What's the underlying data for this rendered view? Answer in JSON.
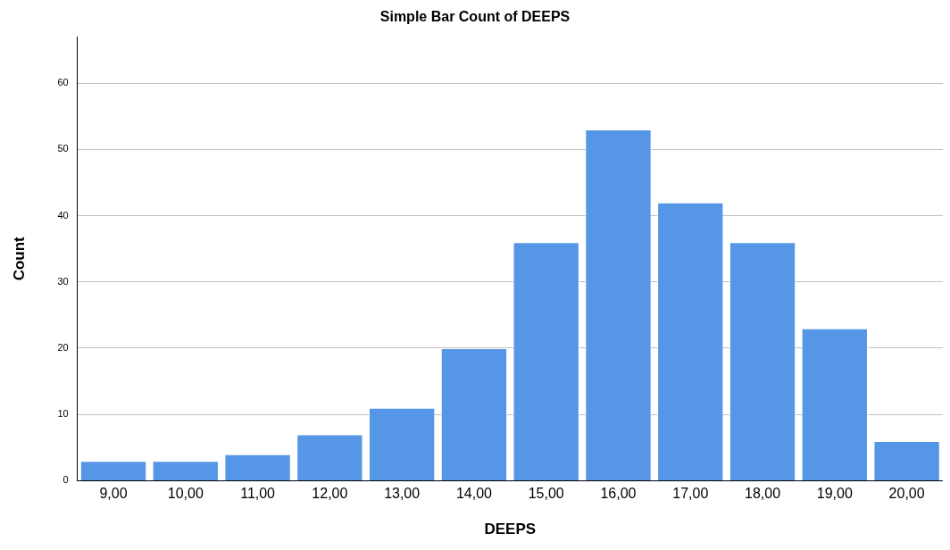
{
  "chart_data": {
    "type": "bar",
    "title": "Simple Bar Count of DEEPS",
    "xlabel": "DEEPS",
    "ylabel": "Count",
    "categories": [
      "9,00",
      "10,00",
      "11,00",
      "12,00",
      "13,00",
      "14,00",
      "15,00",
      "16,00",
      "17,00",
      "18,00",
      "19,00",
      "20,00"
    ],
    "values": [
      3,
      3,
      4,
      7,
      11,
      20,
      36,
      53,
      42,
      36,
      23,
      6
    ],
    "color": "#5596e6",
    "ylim": [
      0,
      67
    ],
    "yticks": [
      0,
      10,
      20,
      30,
      40,
      50,
      60
    ],
    "grid": "y",
    "legend": false
  }
}
